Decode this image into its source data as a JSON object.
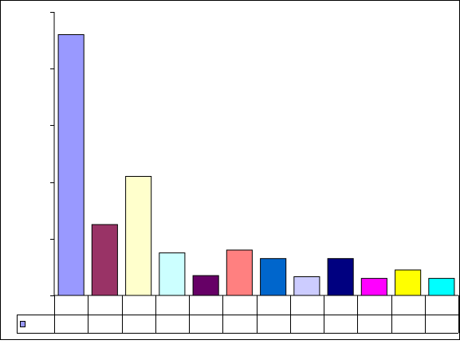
{
  "chart_data": {
    "type": "bar",
    "title": "",
    "xlabel": "",
    "ylabel": "",
    "categories": [
      "",
      "",
      "",
      "",
      "",
      "",
      "",
      "",
      "",
      "",
      "",
      ""
    ],
    "series": [
      {
        "values": [
          4.6,
          1.25,
          2.1,
          0.75,
          0.35,
          0.8,
          0.65,
          0.33,
          0.65,
          0.3,
          0.45,
          0.3
        ],
        "colors": [
          "#9999FF",
          "#993366",
          "#FFFFCC",
          "#CCFFFF",
          "#660066",
          "#FF8080",
          "#0066CC",
          "#CCCCFF",
          "#000080",
          "#FF00FF",
          "#FFFF00",
          "#00FFFF"
        ]
      }
    ],
    "ylim": [
      0,
      5
    ],
    "y_major_step": 1,
    "grid": false,
    "legend": "data-table-left",
    "data_table": true,
    "frame_color": "#000000",
    "background": "#FFFFFF"
  }
}
